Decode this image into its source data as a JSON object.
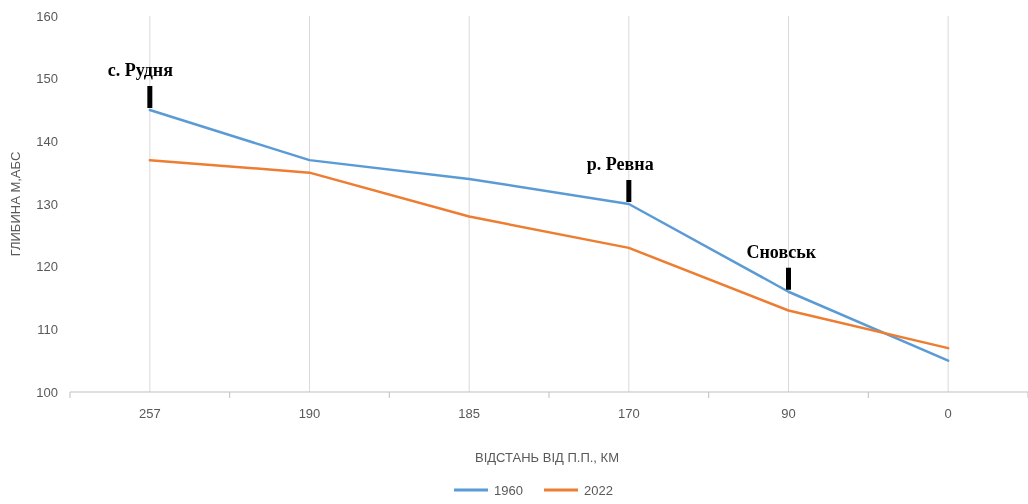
{
  "chart_data": {
    "type": "line",
    "categories": [
      "257",
      "190",
      "185",
      "170",
      "90",
      "0"
    ],
    "series": [
      {
        "name": "1960",
        "color": "#5b9bd5",
        "values": [
          145,
          137,
          134,
          130,
          116,
          105
        ]
      },
      {
        "name": "2022",
        "color": "#ed7d31",
        "values": [
          137,
          135,
          128,
          123,
          113,
          107
        ]
      }
    ],
    "ylim": [
      100,
      160
    ],
    "yticks": [
      100,
      110,
      120,
      130,
      140,
      150,
      160
    ],
    "xlabel": "ВІДСТАНЬ ВІД П.П., КМ",
    "ylabel": "ГЛИБИНА М,АБС",
    "annotations": [
      {
        "text": "с. Рудня",
        "x": "257",
        "y": 145
      },
      {
        "text": "р. Ревна",
        "x": "170",
        "y": 130
      },
      {
        "text": "Сновськ",
        "x": "90",
        "y": 116
      }
    ],
    "grid": "x",
    "legend": "bottom",
    "marker": "none",
    "line_style": "solid"
  }
}
